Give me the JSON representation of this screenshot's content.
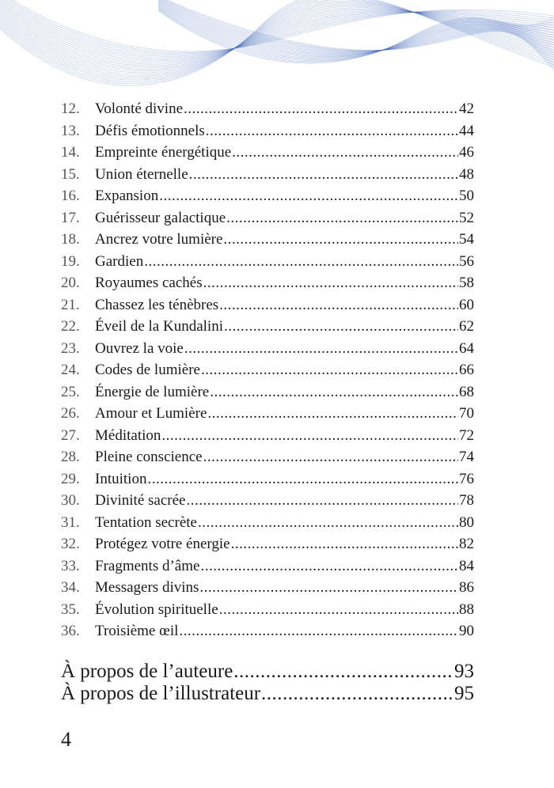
{
  "entries": [
    {
      "num": "12.",
      "title": "Volonté divine",
      "page": "42"
    },
    {
      "num": "13.",
      "title": "Défis émotionnels ",
      "page": "44"
    },
    {
      "num": "14.",
      "title": "Empreinte énergétique ",
      "page": "46"
    },
    {
      "num": "15.",
      "title": "Union éternelle",
      "page": "48"
    },
    {
      "num": "16.",
      "title": "Expansion ",
      "page": "50"
    },
    {
      "num": "17.",
      "title": "Guérisseur galactique",
      "page": "52"
    },
    {
      "num": "18.",
      "title": "Ancrez votre lumière ",
      "page": "54"
    },
    {
      "num": "19.",
      "title": "Gardien ",
      "page": "56"
    },
    {
      "num": "20.",
      "title": "Royaumes cachés",
      "page": "58"
    },
    {
      "num": "21.",
      "title": "Chassez les ténèbres ",
      "page": "60"
    },
    {
      "num": "22.",
      "title": "Éveil de la Kundalini ",
      "page": "62"
    },
    {
      "num": "23.",
      "title": "Ouvrez la voie",
      "page": "64"
    },
    {
      "num": "24.",
      "title": "Codes de lumière ",
      "page": "66"
    },
    {
      "num": "25.",
      "title": "Énergie de lumière",
      "page": "68"
    },
    {
      "num": "26.",
      "title": "Amour et Lumière",
      "page": "70"
    },
    {
      "num": "27.",
      "title": "Méditation",
      "page": "72"
    },
    {
      "num": "28.",
      "title": "Pleine conscience",
      "page": "74"
    },
    {
      "num": "29.",
      "title": "Intuition",
      "page": "76"
    },
    {
      "num": "30.",
      "title": "Divinité sacrée ",
      "page": "78"
    },
    {
      "num": "31.",
      "title": "Tentation secrète ",
      "page": "80"
    },
    {
      "num": "32.",
      "title": "Protégez votre énergie ",
      "page": "82"
    },
    {
      "num": "33.",
      "title": "Fragments d’âme ",
      "page": "84"
    },
    {
      "num": "34.",
      "title": "Messagers divins",
      "page": "86"
    },
    {
      "num": "35.",
      "title": "Évolution spirituelle",
      "page": "88"
    },
    {
      "num": "36.",
      "title": "Troisième œil ",
      "page": "90"
    }
  ],
  "appendix": [
    {
      "title": "À propos de l’auteure",
      "page": "93"
    },
    {
      "title": "À propos de l’illustrateur ",
      "page": "95"
    }
  ],
  "folio": "4",
  "colors": {
    "wave": "#3d63b8",
    "number": "#555555",
    "text": "#1a1a1a"
  }
}
